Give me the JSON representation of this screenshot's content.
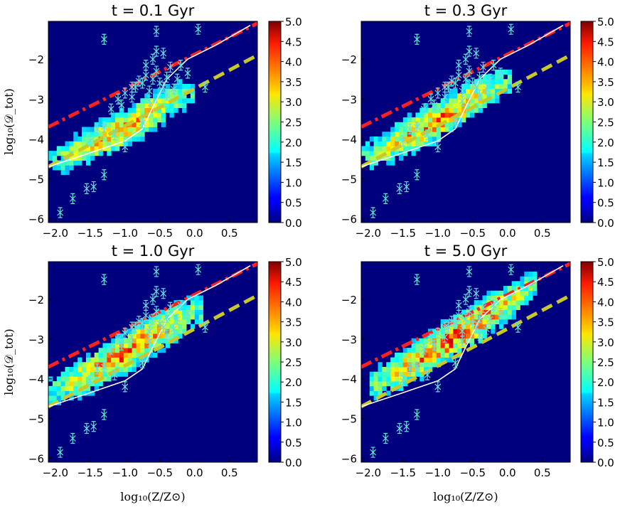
{
  "figure": {
    "xlabel": "log₁₀(Z/Z⊙)",
    "ylabel": "log₁₀(𝒟_tot)"
  },
  "chart_data": [
    {
      "type": "heatmap",
      "title": "t = 0.1 Gyr",
      "time_gyr": 0.1,
      "xlim": [
        -2.1,
        0.9
      ],
      "ylim": [
        -6.1,
        -1.05
      ],
      "xticks": [
        "−2.0",
        "−1.5",
        "−1.0",
        "−0.5",
        "0.0",
        "0.5"
      ],
      "yticks": [
        "−6",
        "−5",
        "−4",
        "−3",
        "−2"
      ],
      "colorbar": {
        "range": [
          0.0,
          5.0
        ],
        "ticks": [
          "0.0",
          "0.5",
          "1.0",
          "1.5",
          "2.0",
          "2.5",
          "3.0",
          "3.5",
          "4.0",
          "4.5",
          "5.0"
        ],
        "cmap": "jet"
      },
      "density_band": {
        "x_range": [
          -2.1,
          -0.05
        ],
        "peak_value": 4.3,
        "centerline": [
          [
            -2.1,
            -4.6
          ],
          [
            -1.5,
            -4.15
          ],
          [
            -1.0,
            -3.75
          ],
          [
            -0.6,
            -3.3
          ],
          [
            -0.2,
            -2.9
          ]
        ]
      },
      "lines": [
        {
          "style": "dash-dot",
          "color": "#ff2020",
          "points": [
            [
              -2.1,
              -3.7
            ],
            [
              0.9,
              -1.1
            ]
          ]
        },
        {
          "style": "dashed",
          "color": "#c8c82a",
          "points": [
            [
              -2.1,
              -4.7
            ],
            [
              0.9,
              -1.9
            ]
          ]
        },
        {
          "style": "solid",
          "color": "#ffffff",
          "points": [
            [
              -2.1,
              -4.7
            ],
            [
              -1.5,
              -4.35
            ],
            [
              -1.0,
              -4.05
            ],
            [
              -0.75,
              -3.75
            ],
            [
              -0.6,
              -3.2
            ],
            [
              -0.4,
              -2.5
            ],
            [
              -0.1,
              -2.0
            ],
            [
              0.3,
              -1.65
            ],
            [
              0.8,
              -1.15
            ]
          ]
        }
      ],
      "observations": [
        [
          -1.93,
          -5.85
        ],
        [
          -1.75,
          -5.5
        ],
        [
          -1.55,
          -5.25
        ],
        [
          -1.45,
          -5.2
        ],
        [
          -1.3,
          -4.9
        ],
        [
          -1.3,
          -1.5
        ],
        [
          -0.85,
          -2.7
        ],
        [
          -0.75,
          -2.6
        ],
        [
          -0.7,
          -2.4
        ],
        [
          -0.65,
          -2.8
        ],
        [
          -0.6,
          -2.5
        ],
        [
          -0.55,
          -2.3
        ],
        [
          -0.5,
          -2.6
        ],
        [
          -0.45,
          -2.7
        ],
        [
          -0.4,
          -2.45
        ],
        [
          -0.35,
          -2.2
        ],
        [
          -0.6,
          -2.0
        ],
        [
          -0.55,
          -1.8
        ],
        [
          -0.45,
          -1.85
        ],
        [
          -0.55,
          -1.3
        ],
        [
          -0.3,
          -2.75
        ],
        [
          -0.65,
          -3.05
        ],
        [
          -0.9,
          -2.95
        ],
        [
          -1.0,
          -2.85
        ],
        [
          -1.05,
          -3.15
        ],
        [
          -1.1,
          -3.0
        ],
        [
          -1.2,
          -3.25
        ],
        [
          -1.3,
          -3.7
        ],
        [
          -1.4,
          -3.75
        ],
        [
          -1.5,
          -4.05
        ],
        [
          -1.15,
          -3.9
        ],
        [
          -1.0,
          -4.2
        ],
        [
          -0.75,
          -3.6
        ],
        [
          -0.2,
          -2.15
        ],
        [
          -0.1,
          -2.35
        ],
        [
          0.05,
          -1.25
        ],
        [
          0.15,
          -2.7
        ],
        [
          -0.8,
          -2.55
        ],
        [
          -0.9,
          -2.7
        ],
        [
          -0.7,
          -2.15
        ],
        [
          -0.4,
          -2.9
        ],
        [
          -0.25,
          -2.5
        ]
      ]
    },
    {
      "type": "heatmap",
      "title": "t = 0.3 Gyr",
      "time_gyr": 0.3,
      "xlim": [
        -2.1,
        0.9
      ],
      "ylim": [
        -6.1,
        -1.05
      ],
      "xticks": [
        "−2.0",
        "−1.5",
        "−1.0",
        "−0.5",
        "0.0",
        "0.5"
      ],
      "yticks": [
        "−6",
        "−5",
        "−4",
        "−3",
        "−2"
      ],
      "colorbar": {
        "range": [
          0.0,
          5.0
        ],
        "ticks": [
          "0.0",
          "0.5",
          "1.0",
          "1.5",
          "2.0",
          "2.5",
          "3.0",
          "3.5",
          "4.0",
          "4.5",
          "5.0"
        ],
        "cmap": "jet"
      },
      "density_band": {
        "x_range": [
          -2.1,
          0.05
        ],
        "peak_value": 4.5,
        "centerline": [
          [
            -2.1,
            -4.5
          ],
          [
            -1.5,
            -4.0
          ],
          [
            -1.0,
            -3.55
          ],
          [
            -0.6,
            -3.1
          ],
          [
            -0.1,
            -2.6
          ]
        ]
      },
      "lines": [
        {
          "style": "dash-dot",
          "color": "#ff2020",
          "points": [
            [
              -2.1,
              -3.7
            ],
            [
              0.9,
              -1.1
            ]
          ]
        },
        {
          "style": "dashed",
          "color": "#c8c82a",
          "points": [
            [
              -2.1,
              -4.7
            ],
            [
              0.9,
              -1.9
            ]
          ]
        },
        {
          "style": "solid",
          "color": "#ffffff",
          "points": [
            [
              -2.1,
              -4.7
            ],
            [
              -1.5,
              -4.35
            ],
            [
              -1.0,
              -4.05
            ],
            [
              -0.75,
              -3.75
            ],
            [
              -0.6,
              -3.2
            ],
            [
              -0.4,
              -2.5
            ],
            [
              -0.1,
              -2.0
            ],
            [
              0.3,
              -1.65
            ],
            [
              0.8,
              -1.15
            ]
          ]
        }
      ],
      "observations": [
        [
          -1.93,
          -5.85
        ],
        [
          -1.75,
          -5.5
        ],
        [
          -1.55,
          -5.25
        ],
        [
          -1.45,
          -5.2
        ],
        [
          -1.3,
          -4.9
        ],
        [
          -1.3,
          -1.5
        ],
        [
          -0.85,
          -2.7
        ],
        [
          -0.75,
          -2.6
        ],
        [
          -0.7,
          -2.4
        ],
        [
          -0.65,
          -2.8
        ],
        [
          -0.6,
          -2.5
        ],
        [
          -0.55,
          -2.3
        ],
        [
          -0.5,
          -2.6
        ],
        [
          -0.45,
          -2.7
        ],
        [
          -0.4,
          -2.45
        ],
        [
          -0.35,
          -2.2
        ],
        [
          -0.6,
          -2.0
        ],
        [
          -0.55,
          -1.8
        ],
        [
          -0.45,
          -1.85
        ],
        [
          -0.55,
          -1.3
        ],
        [
          -0.3,
          -2.75
        ],
        [
          -0.65,
          -3.05
        ],
        [
          -0.9,
          -2.95
        ],
        [
          -1.0,
          -2.85
        ],
        [
          -1.05,
          -3.15
        ],
        [
          -1.1,
          -3.0
        ],
        [
          -1.2,
          -3.25
        ],
        [
          -1.3,
          -3.7
        ],
        [
          -1.4,
          -3.75
        ],
        [
          -1.5,
          -4.05
        ],
        [
          -1.15,
          -3.9
        ],
        [
          -1.0,
          -4.2
        ],
        [
          -0.75,
          -3.6
        ],
        [
          -0.2,
          -2.15
        ],
        [
          -0.1,
          -2.35
        ],
        [
          0.05,
          -1.25
        ],
        [
          0.15,
          -2.7
        ],
        [
          -0.8,
          -2.55
        ],
        [
          -0.9,
          -2.7
        ],
        [
          -0.7,
          -2.15
        ],
        [
          -0.4,
          -2.9
        ],
        [
          -0.25,
          -2.5
        ]
      ]
    },
    {
      "type": "heatmap",
      "title": "t = 1.0 Gyr",
      "time_gyr": 1.0,
      "xlim": [
        -2.1,
        0.9
      ],
      "ylim": [
        -6.1,
        -1.05
      ],
      "xticks": [
        "−2.0",
        "−1.5",
        "−1.0",
        "−0.5",
        "0.0",
        "0.5"
      ],
      "yticks": [
        "−6",
        "−5",
        "−4",
        "−3",
        "−2"
      ],
      "colorbar": {
        "range": [
          0.0,
          5.0
        ],
        "ticks": [
          "0.0",
          "0.5",
          "1.0",
          "1.5",
          "2.0",
          "2.5",
          "3.0",
          "3.5",
          "4.0",
          "4.5",
          "5.0"
        ],
        "cmap": "jet"
      },
      "density_band": {
        "x_range": [
          -2.1,
          0.1
        ],
        "peak_value": 4.7,
        "centerline": [
          [
            -2.1,
            -4.35
          ],
          [
            -1.5,
            -3.85
          ],
          [
            -1.0,
            -3.35
          ],
          [
            -0.6,
            -2.9
          ],
          [
            0.0,
            -2.3
          ]
        ]
      },
      "lines": [
        {
          "style": "dash-dot",
          "color": "#ff2020",
          "points": [
            [
              -2.1,
              -3.7
            ],
            [
              0.9,
              -1.1
            ]
          ]
        },
        {
          "style": "dashed",
          "color": "#c8c82a",
          "points": [
            [
              -2.1,
              -4.7
            ],
            [
              0.9,
              -1.9
            ]
          ]
        },
        {
          "style": "solid",
          "color": "#ffffff",
          "points": [
            [
              -2.1,
              -4.7
            ],
            [
              -1.5,
              -4.35
            ],
            [
              -1.0,
              -4.05
            ],
            [
              -0.75,
              -3.75
            ],
            [
              -0.6,
              -3.2
            ],
            [
              -0.4,
              -2.5
            ],
            [
              -0.1,
              -2.0
            ],
            [
              0.3,
              -1.65
            ],
            [
              0.8,
              -1.15
            ]
          ]
        }
      ],
      "observations": [
        [
          -1.93,
          -5.85
        ],
        [
          -1.75,
          -5.5
        ],
        [
          -1.55,
          -5.25
        ],
        [
          -1.45,
          -5.2
        ],
        [
          -1.3,
          -4.9
        ],
        [
          -1.3,
          -1.5
        ],
        [
          -0.85,
          -2.7
        ],
        [
          -0.75,
          -2.6
        ],
        [
          -0.7,
          -2.4
        ],
        [
          -0.65,
          -2.8
        ],
        [
          -0.6,
          -2.5
        ],
        [
          -0.55,
          -2.3
        ],
        [
          -0.5,
          -2.6
        ],
        [
          -0.45,
          -2.7
        ],
        [
          -0.4,
          -2.45
        ],
        [
          -0.35,
          -2.2
        ],
        [
          -0.6,
          -2.0
        ],
        [
          -0.55,
          -1.8
        ],
        [
          -0.45,
          -1.85
        ],
        [
          -0.55,
          -1.3
        ],
        [
          -0.3,
          -2.75
        ],
        [
          -0.65,
          -3.05
        ],
        [
          -0.9,
          -2.95
        ],
        [
          -1.0,
          -2.85
        ],
        [
          -1.05,
          -3.15
        ],
        [
          -1.1,
          -3.0
        ],
        [
          -1.2,
          -3.25
        ],
        [
          -1.3,
          -3.7
        ],
        [
          -1.4,
          -3.75
        ],
        [
          -1.5,
          -4.05
        ],
        [
          -1.15,
          -3.9
        ],
        [
          -1.0,
          -4.2
        ],
        [
          -0.75,
          -3.6
        ],
        [
          -0.2,
          -2.15
        ],
        [
          -0.1,
          -2.35
        ],
        [
          0.05,
          -1.25
        ],
        [
          0.15,
          -2.7
        ],
        [
          -0.8,
          -2.55
        ],
        [
          -0.9,
          -2.7
        ],
        [
          -0.7,
          -2.15
        ],
        [
          -0.4,
          -2.9
        ],
        [
          -0.25,
          -2.5
        ]
      ]
    },
    {
      "type": "heatmap",
      "title": "t = 5.0 Gyr",
      "time_gyr": 5.0,
      "xlim": [
        -2.1,
        0.9
      ],
      "ylim": [
        -6.1,
        -1.05
      ],
      "xticks": [
        "−2.0",
        "−1.5",
        "−1.0",
        "−0.5",
        "0.0",
        "0.5"
      ],
      "yticks": [
        "−6",
        "−5",
        "−4",
        "−3",
        "−2"
      ],
      "colorbar": {
        "range": [
          0.0,
          5.0
        ],
        "ticks": [
          "0.0",
          "0.5",
          "1.0",
          "1.5",
          "2.0",
          "2.5",
          "3.0",
          "3.5",
          "4.0",
          "4.5",
          "5.0"
        ],
        "cmap": "jet"
      },
      "density_band": {
        "x_range": [
          -2.0,
          0.4
        ],
        "peak_value": 4.9,
        "centerline": [
          [
            -2.0,
            -4.2
          ],
          [
            -1.5,
            -3.75
          ],
          [
            -1.0,
            -3.2
          ],
          [
            -0.5,
            -2.65
          ],
          [
            0.0,
            -2.1
          ],
          [
            0.4,
            -1.6
          ]
        ]
      },
      "lines": [
        {
          "style": "dash-dot",
          "color": "#ff2020",
          "points": [
            [
              -2.1,
              -3.7
            ],
            [
              0.9,
              -1.1
            ]
          ]
        },
        {
          "style": "dashed",
          "color": "#c8c82a",
          "points": [
            [
              -2.1,
              -4.7
            ],
            [
              0.9,
              -1.9
            ]
          ]
        },
        {
          "style": "solid",
          "color": "#ffffff",
          "points": [
            [
              -2.1,
              -4.7
            ],
            [
              -1.5,
              -4.35
            ],
            [
              -1.0,
              -4.05
            ],
            [
              -0.75,
              -3.75
            ],
            [
              -0.6,
              -3.2
            ],
            [
              -0.4,
              -2.5
            ],
            [
              -0.1,
              -2.0
            ],
            [
              0.3,
              -1.65
            ],
            [
              0.8,
              -1.15
            ]
          ]
        }
      ],
      "observations": [
        [
          -1.93,
          -5.85
        ],
        [
          -1.75,
          -5.5
        ],
        [
          -1.55,
          -5.25
        ],
        [
          -1.45,
          -5.2
        ],
        [
          -1.3,
          -4.9
        ],
        [
          -1.3,
          -1.5
        ],
        [
          -0.85,
          -2.7
        ],
        [
          -0.75,
          -2.6
        ],
        [
          -0.7,
          -2.4
        ],
        [
          -0.65,
          -2.8
        ],
        [
          -0.6,
          -2.5
        ],
        [
          -0.55,
          -2.3
        ],
        [
          -0.5,
          -2.6
        ],
        [
          -0.45,
          -2.7
        ],
        [
          -0.4,
          -2.45
        ],
        [
          -0.35,
          -2.2
        ],
        [
          -0.6,
          -2.0
        ],
        [
          -0.55,
          -1.8
        ],
        [
          -0.45,
          -1.85
        ],
        [
          -0.55,
          -1.3
        ],
        [
          -0.3,
          -2.75
        ],
        [
          -0.65,
          -3.05
        ],
        [
          -0.9,
          -2.95
        ],
        [
          -1.0,
          -2.85
        ],
        [
          -1.05,
          -3.15
        ],
        [
          -1.1,
          -3.0
        ],
        [
          -1.2,
          -3.25
        ],
        [
          -1.3,
          -3.7
        ],
        [
          -1.4,
          -3.75
        ],
        [
          -1.5,
          -4.05
        ],
        [
          -1.15,
          -3.9
        ],
        [
          -1.0,
          -4.2
        ],
        [
          -0.75,
          -3.6
        ],
        [
          -0.2,
          -2.15
        ],
        [
          -0.1,
          -2.35
        ],
        [
          0.05,
          -1.25
        ],
        [
          0.15,
          -2.7
        ],
        [
          -0.8,
          -2.55
        ],
        [
          -0.9,
          -2.7
        ],
        [
          -0.7,
          -2.15
        ],
        [
          -0.4,
          -2.9
        ],
        [
          -0.25,
          -2.5
        ]
      ]
    }
  ]
}
